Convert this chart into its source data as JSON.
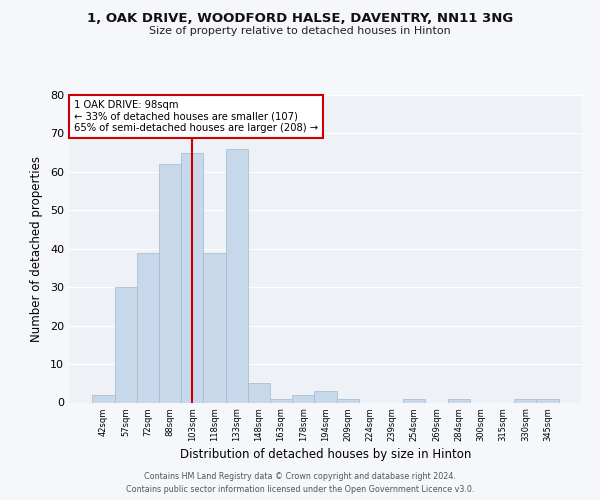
{
  "title1": "1, OAK DRIVE, WOODFORD HALSE, DAVENTRY, NN11 3NG",
  "title2": "Size of property relative to detached houses in Hinton",
  "xlabel": "Distribution of detached houses by size in Hinton",
  "ylabel": "Number of detached properties",
  "bar_color": "#c8d8eb",
  "bar_edge_color": "#a0b8cf",
  "bg_color": "#eef2f7",
  "grid_color": "#ffffff",
  "categories": [
    "42sqm",
    "57sqm",
    "72sqm",
    "88sqm",
    "103sqm",
    "118sqm",
    "133sqm",
    "148sqm",
    "163sqm",
    "178sqm",
    "194sqm",
    "209sqm",
    "224sqm",
    "239sqm",
    "254sqm",
    "269sqm",
    "284sqm",
    "300sqm",
    "315sqm",
    "330sqm",
    "345sqm"
  ],
  "values": [
    2,
    30,
    39,
    62,
    65,
    39,
    66,
    5,
    1,
    2,
    3,
    1,
    0,
    0,
    1,
    0,
    1,
    0,
    0,
    1,
    1
  ],
  "ylim": [
    0,
    80
  ],
  "yticks": [
    0,
    10,
    20,
    30,
    40,
    50,
    60,
    70,
    80
  ],
  "vline_x": 4,
  "vline_color": "#cc0000",
  "annotation_title": "1 OAK DRIVE: 98sqm",
  "annotation_line1": "← 33% of detached houses are smaller (107)",
  "annotation_line2": "65% of semi-detached houses are larger (208) →",
  "annotation_box_color": "#cc0000",
  "footer1": "Contains HM Land Registry data © Crown copyright and database right 2024.",
  "footer2": "Contains public sector information licensed under the Open Government Licence v3.0."
}
